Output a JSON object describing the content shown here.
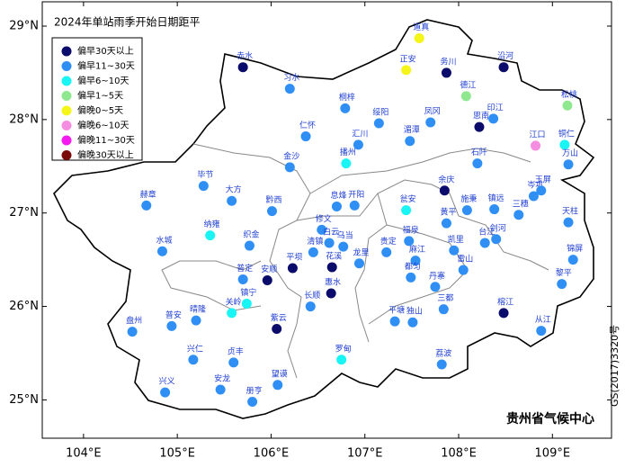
{
  "title": "2024年单站雨季开始日期距平",
  "credit": "贵州省气候中心",
  "map_number": "GS(2017)3320号",
  "xlim": [
    103.56,
    109.63
  ],
  "ylim": [
    24.59,
    29.26
  ],
  "xticks": [
    {
      "value": 104,
      "label": "104°E"
    },
    {
      "value": 105,
      "label": "105°E"
    },
    {
      "value": 106,
      "label": "106°E"
    },
    {
      "value": 107,
      "label": "107°E"
    },
    {
      "value": 108,
      "label": "108°E"
    },
    {
      "value": 109,
      "label": "109°E"
    }
  ],
  "yticks": [
    {
      "value": 25,
      "label": "25°N"
    },
    {
      "value": 26,
      "label": "26°N"
    },
    {
      "value": 27,
      "label": "27°N"
    },
    {
      "value": 28,
      "label": "28°N"
    },
    {
      "value": 29,
      "label": "29°N"
    }
  ],
  "legend": [
    {
      "label": "偏早30天以上",
      "color": "#0b0b6b"
    },
    {
      "label": "偏早11~30天",
      "color": "#2f8ff5"
    },
    {
      "label": "偏早6~10天",
      "color": "#19f5f5"
    },
    {
      "label": "偏早1~5天",
      "color": "#8fe88f"
    },
    {
      "label": "偏晚0~5天",
      "color": "#f5f51a"
    },
    {
      "label": "偏晚6~10天",
      "color": "#f58ee0"
    },
    {
      "label": "偏晚11~30天",
      "color": "#f51af0"
    },
    {
      "label": "偏晚30天以上",
      "color": "#7a0a0a"
    }
  ],
  "stations": [
    {
      "name": "道真",
      "lon": 107.58,
      "lat": 28.87,
      "category": 4
    },
    {
      "name": "赤水",
      "lon": 105.7,
      "lat": 28.56,
      "category": 0
    },
    {
      "name": "正安",
      "lon": 107.44,
      "lat": 28.53,
      "category": 4
    },
    {
      "name": "务川",
      "lon": 107.87,
      "lat": 28.5,
      "category": 0
    },
    {
      "name": "沿河",
      "lon": 108.48,
      "lat": 28.56,
      "category": 0
    },
    {
      "name": "习水",
      "lon": 106.2,
      "lat": 28.33,
      "category": 1
    },
    {
      "name": "德江",
      "lon": 108.08,
      "lat": 28.25,
      "category": 3
    },
    {
      "name": "松桃",
      "lon": 109.16,
      "lat": 28.15,
      "category": 3
    },
    {
      "name": "桐梓",
      "lon": 106.79,
      "lat": 28.12,
      "category": 1
    },
    {
      "name": "绥阳",
      "lon": 107.15,
      "lat": 27.96,
      "category": 1
    },
    {
      "name": "凤冈",
      "lon": 107.7,
      "lat": 27.97,
      "category": 1
    },
    {
      "name": "印江",
      "lon": 108.37,
      "lat": 28.01,
      "category": 1
    },
    {
      "name": "思南",
      "lon": 108.22,
      "lat": 27.92,
      "category": 0
    },
    {
      "name": "仁怀",
      "lon": 106.37,
      "lat": 27.82,
      "category": 1
    },
    {
      "name": "湄潭",
      "lon": 107.48,
      "lat": 27.77,
      "category": 1
    },
    {
      "name": "汇川",
      "lon": 106.93,
      "lat": 27.73,
      "category": 1
    },
    {
      "name": "江口",
      "lon": 108.82,
      "lat": 27.72,
      "category": 5
    },
    {
      "name": "铜仁",
      "lon": 109.13,
      "lat": 27.73,
      "category": 2
    },
    {
      "name": "万山",
      "lon": 109.17,
      "lat": 27.52,
      "category": 1
    },
    {
      "name": "播州",
      "lon": 106.8,
      "lat": 27.53,
      "category": 2
    },
    {
      "name": "金沙",
      "lon": 106.2,
      "lat": 27.49,
      "category": 1
    },
    {
      "name": "石阡",
      "lon": 108.2,
      "lat": 27.53,
      "category": 1
    },
    {
      "name": "毕节",
      "lon": 105.28,
      "lat": 27.29,
      "category": 1
    },
    {
      "name": "大方",
      "lon": 105.58,
      "lat": 27.13,
      "category": 1
    },
    {
      "name": "余庆",
      "lon": 107.85,
      "lat": 27.24,
      "category": 0
    },
    {
      "name": "岑巩",
      "lon": 108.8,
      "lat": 27.18,
      "category": 1
    },
    {
      "name": "玉屏",
      "lon": 108.88,
      "lat": 27.24,
      "category": 1
    },
    {
      "name": "赫章",
      "lon": 104.67,
      "lat": 27.08,
      "category": 1
    },
    {
      "name": "黔西",
      "lon": 106.01,
      "lat": 27.02,
      "category": 1
    },
    {
      "name": "息烽",
      "lon": 106.7,
      "lat": 27.07,
      "category": 1
    },
    {
      "name": "开阳",
      "lon": 106.89,
      "lat": 27.08,
      "category": 1
    },
    {
      "name": "瓮安",
      "lon": 107.44,
      "lat": 27.03,
      "category": 2
    },
    {
      "name": "黄平",
      "lon": 107.87,
      "lat": 26.89,
      "category": 1
    },
    {
      "name": "施秉",
      "lon": 108.09,
      "lat": 27.03,
      "category": 1
    },
    {
      "name": "镇远",
      "lon": 108.38,
      "lat": 27.04,
      "category": 1
    },
    {
      "name": "三穗",
      "lon": 108.64,
      "lat": 26.98,
      "category": 1
    },
    {
      "name": "天柱",
      "lon": 109.17,
      "lat": 26.9,
      "category": 1
    },
    {
      "name": "纳雍",
      "lon": 105.35,
      "lat": 26.76,
      "category": 2
    },
    {
      "name": "修文",
      "lon": 106.54,
      "lat": 26.82,
      "category": 1
    },
    {
      "name": "织金",
      "lon": 105.77,
      "lat": 26.65,
      "category": 1
    },
    {
      "name": "白云",
      "lon": 106.62,
      "lat": 26.68,
      "category": 1
    },
    {
      "name": "乌当",
      "lon": 106.77,
      "lat": 26.64,
      "category": 1
    },
    {
      "name": "清镇",
      "lon": 106.45,
      "lat": 26.58,
      "category": 1
    },
    {
      "name": "花溪",
      "lon": 106.65,
      "lat": 26.42,
      "category": 0
    },
    {
      "name": "龙里",
      "lon": 106.94,
      "lat": 26.46,
      "category": 1
    },
    {
      "name": "福泉",
      "lon": 107.47,
      "lat": 26.7,
      "category": 1
    },
    {
      "name": "凯里",
      "lon": 107.95,
      "lat": 26.6,
      "category": 1
    },
    {
      "name": "剑河",
      "lon": 108.4,
      "lat": 26.72,
      "category": 1
    },
    {
      "name": "台江",
      "lon": 108.28,
      "lat": 26.68,
      "category": 1
    },
    {
      "name": "水城",
      "lon": 104.84,
      "lat": 26.59,
      "category": 1
    },
    {
      "name": "贵定",
      "lon": 107.23,
      "lat": 26.58,
      "category": 1
    },
    {
      "name": "麻江",
      "lon": 107.54,
      "lat": 26.49,
      "category": 1
    },
    {
      "name": "雷山",
      "lon": 108.05,
      "lat": 26.39,
      "category": 1
    },
    {
      "name": "锦屏",
      "lon": 109.22,
      "lat": 26.5,
      "category": 1
    },
    {
      "name": "普定",
      "lon": 105.7,
      "lat": 26.29,
      "category": 1
    },
    {
      "name": "安顺",
      "lon": 105.96,
      "lat": 26.28,
      "category": 0
    },
    {
      "name": "平坝",
      "lon": 106.23,
      "lat": 26.41,
      "category": 0
    },
    {
      "name": "长顺",
      "lon": 106.42,
      "lat": 26.0,
      "category": 1
    },
    {
      "name": "惠水",
      "lon": 106.64,
      "lat": 26.14,
      "category": 0
    },
    {
      "name": "都匀",
      "lon": 107.49,
      "lat": 26.31,
      "category": 1
    },
    {
      "name": "丹寨",
      "lon": 107.75,
      "lat": 26.21,
      "category": 1
    },
    {
      "name": "榕江",
      "lon": 108.48,
      "lat": 25.93,
      "category": 0
    },
    {
      "name": "黎平",
      "lon": 109.1,
      "lat": 26.24,
      "category": 1
    },
    {
      "name": "镇宁",
      "lon": 105.74,
      "lat": 26.03,
      "category": 2
    },
    {
      "name": "关岭",
      "lon": 105.58,
      "lat": 25.93,
      "category": 2
    },
    {
      "name": "紫云",
      "lon": 106.06,
      "lat": 25.76,
      "category": 0
    },
    {
      "name": "三都",
      "lon": 107.84,
      "lat": 25.97,
      "category": 1
    },
    {
      "name": "晴隆",
      "lon": 105.2,
      "lat": 25.85,
      "category": 1
    },
    {
      "name": "普安",
      "lon": 104.94,
      "lat": 25.79,
      "category": 1
    },
    {
      "name": "盘州",
      "lon": 104.52,
      "lat": 25.73,
      "category": 1
    },
    {
      "name": "平塘",
      "lon": 107.32,
      "lat": 25.84,
      "category": 1
    },
    {
      "name": "独山",
      "lon": 107.51,
      "lat": 25.83,
      "category": 1
    },
    {
      "name": "从江",
      "lon": 108.88,
      "lat": 25.74,
      "category": 1
    },
    {
      "name": "罗甸",
      "lon": 106.75,
      "lat": 25.43,
      "category": 2
    },
    {
      "name": "兴仁",
      "lon": 105.17,
      "lat": 25.43,
      "category": 1
    },
    {
      "name": "贞丰",
      "lon": 105.6,
      "lat": 25.4,
      "category": 1
    },
    {
      "name": "荔波",
      "lon": 107.82,
      "lat": 25.38,
      "category": 1
    },
    {
      "name": "望谟",
      "lon": 106.07,
      "lat": 25.16,
      "category": 1
    },
    {
      "name": "安龙",
      "lon": 105.46,
      "lat": 25.11,
      "category": 1
    },
    {
      "name": "兴义",
      "lon": 104.87,
      "lat": 25.08,
      "category": 1
    },
    {
      "name": "册亨",
      "lon": 105.8,
      "lat": 24.98,
      "category": 1
    }
  ]
}
